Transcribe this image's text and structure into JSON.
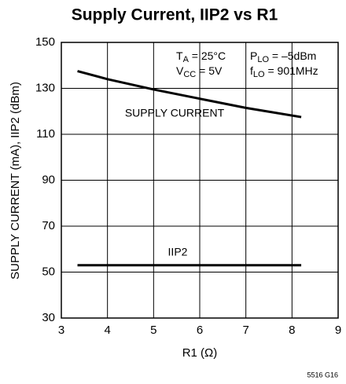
{
  "chart_data": {
    "type": "line",
    "title": "Supply Current, IIP2 vs R1",
    "x_label": "R1 (Ω)",
    "y_label": "SUPPLY CURRENT (mA), IIP2 (dBm)",
    "xlim": [
      3,
      9
    ],
    "xticks": [
      3,
      4,
      5,
      6,
      7,
      8,
      9
    ],
    "ylim": [
      30,
      150
    ],
    "yticks": [
      30,
      50,
      70,
      90,
      110,
      130,
      150
    ],
    "grid": true,
    "series": [
      {
        "name": "SUPPLY CURRENT",
        "color": "#000000",
        "x": [
          3.35,
          4,
          5,
          6,
          7,
          8.2
        ],
        "values": [
          137.5,
          134,
          129.5,
          125.5,
          121.5,
          117.5
        ]
      },
      {
        "name": "IIP2",
        "color": "#000000",
        "x": [
          3.35,
          8.2
        ],
        "values": [
          53,
          53
        ]
      }
    ],
    "annotations": [
      [
        "T",
        "A",
        " = 25°C"
      ],
      [
        "V",
        "CC",
        " = 5V"
      ],
      [
        "P",
        "LO",
        " = –5dBm"
      ],
      [
        "f",
        "LO",
        " = 901MHz"
      ]
    ],
    "footnote": "5516 G16"
  }
}
